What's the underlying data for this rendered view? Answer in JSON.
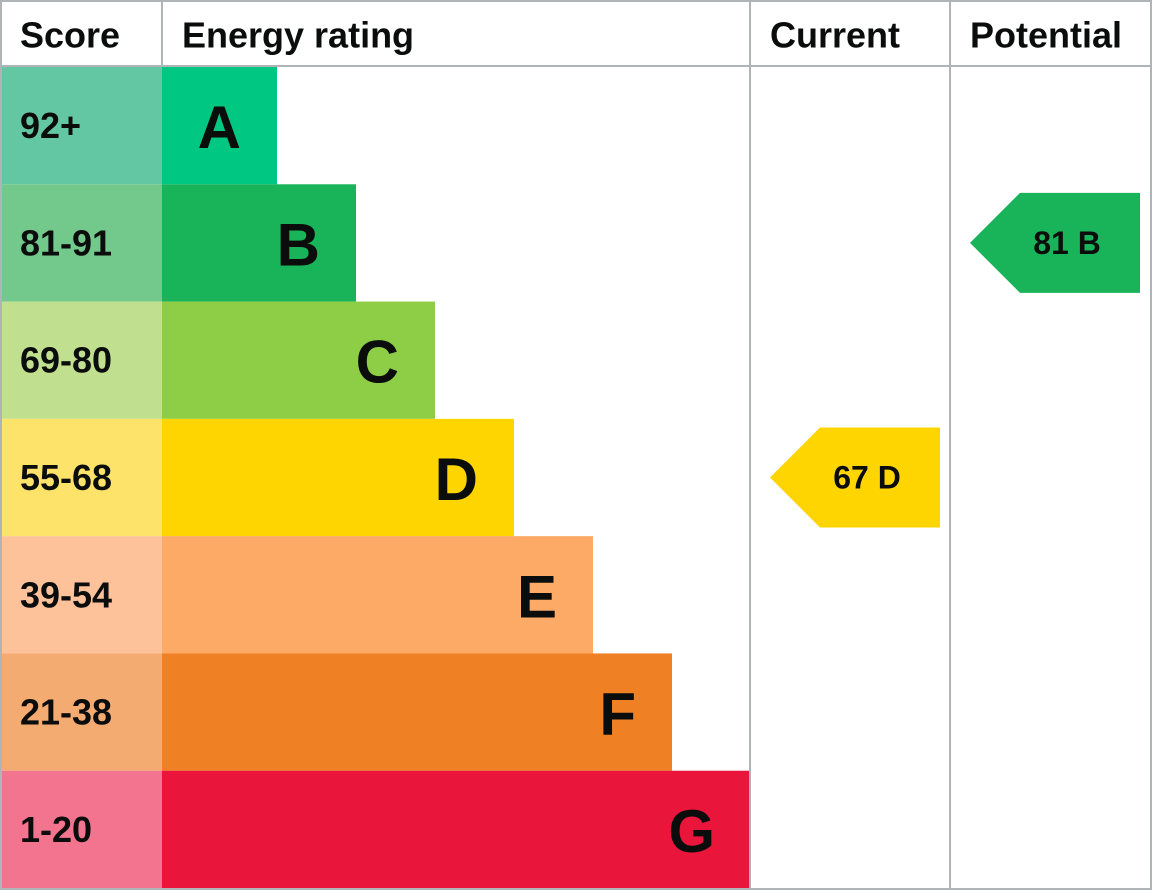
{
  "header": {
    "score": "Score",
    "energy_rating": "Energy rating",
    "current": "Current",
    "potential": "Potential"
  },
  "rows": [
    {
      "score": "92+",
      "rating": "A"
    },
    {
      "score": "81-91",
      "rating": "B"
    },
    {
      "score": "69-80",
      "rating": "C"
    },
    {
      "score": "55-68",
      "rating": "D"
    },
    {
      "score": "39-54",
      "rating": "E"
    },
    {
      "score": "21-38",
      "rating": "F"
    },
    {
      "score": "1-20",
      "rating": "G"
    }
  ],
  "current": {
    "score": 67,
    "rating": "D"
  },
  "potential": {
    "score": 81,
    "rating": "B"
  }
}
